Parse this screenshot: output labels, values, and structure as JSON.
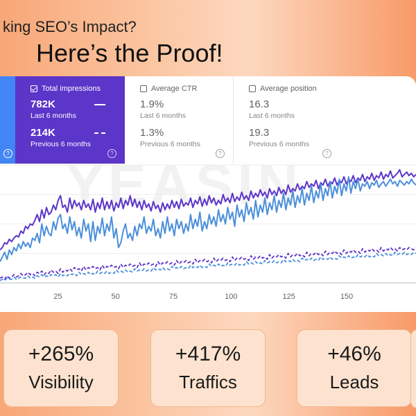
{
  "headline": {
    "tagline": "king SEO’s Impact?",
    "main": "Here’s the Proof!"
  },
  "metrics": [
    {
      "id": "clicks",
      "label": "",
      "checked": true,
      "color": "#4285f4"
    },
    {
      "id": "impressions",
      "label": "Total impressions",
      "checked": true,
      "color": "#5c35c9",
      "current": "782K",
      "current_period": "Last 6 months",
      "previous": "214K",
      "previous_period": "Previous 6 months"
    },
    {
      "id": "ctr",
      "label": "Average CTR",
      "checked": false,
      "current": "1.9%",
      "current_period": "Last 6 months",
      "previous": "1.3%",
      "previous_period": "Previous 6 months"
    },
    {
      "id": "position",
      "label": "Average position",
      "checked": false,
      "current": "16.3",
      "current_period": "Last 6 months",
      "previous": "19.3",
      "previous_period": "Previous 6 months"
    }
  ],
  "watermark": "YEASIN",
  "chart_data": {
    "type": "line",
    "x_ticks": [
      25,
      50,
      75,
      100,
      125,
      150
    ],
    "xlim": [
      0,
      180
    ],
    "ylim": [
      0,
      100
    ],
    "grid": true,
    "series": [
      {
        "color": "#5c35c9",
        "style": "solid",
        "values": [
          28,
          30,
          34,
          33,
          37,
          35,
          38,
          40,
          39,
          44,
          42,
          48,
          46,
          50,
          49,
          53,
          58,
          52,
          62,
          55,
          64,
          58,
          60,
          66,
          62,
          70,
          74,
          64,
          66,
          60,
          72,
          63,
          70,
          65,
          68,
          62,
          70,
          64,
          67,
          62,
          71,
          60,
          68,
          63,
          72,
          62,
          69,
          63,
          70,
          61,
          68,
          64,
          72,
          63,
          70,
          66,
          74,
          65,
          71,
          64,
          69,
          62,
          70,
          64,
          67,
          61,
          69,
          63,
          66,
          60,
          68,
          62,
          67,
          63,
          70,
          64,
          69,
          63,
          71,
          65,
          68,
          66,
          72,
          64,
          70,
          67,
          73,
          65,
          71,
          66,
          74,
          68,
          72,
          66,
          70,
          67,
          75,
          69,
          72,
          68,
          76,
          69,
          73,
          70,
          77,
          71,
          74,
          70,
          78,
          72,
          76,
          73,
          79,
          74,
          77,
          72,
          80,
          75,
          78,
          74,
          81,
          76,
          79,
          75,
          83,
          77,
          80,
          78,
          84,
          79,
          82,
          80,
          86,
          81,
          84,
          82,
          87,
          80,
          85,
          83,
          88,
          82,
          86,
          84,
          89,
          83,
          87,
          85,
          90,
          84,
          88,
          86,
          91,
          85,
          89,
          87,
          92,
          86,
          90,
          88,
          93,
          87,
          91,
          89,
          94,
          88,
          92,
          90,
          95,
          89,
          91,
          93,
          96,
          90,
          92,
          94,
          91,
          93,
          90,
          92
        ]
      },
      {
        "color": "#4b8fdb",
        "style": "solid",
        "values": [
          18,
          22,
          26,
          20,
          28,
          24,
          30,
          27,
          33,
          29,
          35,
          31,
          34,
          30,
          38,
          36,
          42,
          34,
          50,
          40,
          48,
          42,
          40,
          52,
          45,
          55,
          58,
          46,
          50,
          42,
          56,
          45,
          52,
          40,
          47,
          38,
          54,
          44,
          50,
          35,
          52,
          36,
          48,
          42,
          55,
          40,
          50,
          44,
          56,
          38,
          46,
          30,
          34,
          44,
          50,
          38,
          42,
          36,
          48,
          40,
          50,
          46,
          56,
          42,
          48,
          44,
          54,
          40,
          46,
          38,
          52,
          42,
          56,
          44,
          50,
          40,
          54,
          46,
          52,
          42,
          50,
          44,
          58,
          46,
          54,
          48,
          60,
          44,
          52,
          46,
          58,
          50,
          56,
          48,
          62,
          52,
          58,
          50,
          64,
          54,
          60,
          48,
          66,
          56,
          62,
          52,
          68,
          58,
          64,
          54,
          70,
          56,
          66,
          60,
          72,
          58,
          68,
          62,
          74,
          60,
          70,
          64,
          76,
          62,
          72,
          66,
          78,
          64,
          74,
          68,
          80,
          66,
          76,
          70,
          82,
          68,
          78,
          72,
          84,
          70,
          80,
          74,
          86,
          72,
          82,
          76,
          88,
          74,
          84,
          78,
          90,
          76,
          86,
          80,
          88,
          78,
          84,
          82,
          86,
          80,
          85,
          83,
          87,
          81,
          84,
          86,
          82,
          85,
          88,
          84,
          86,
          82,
          87,
          85,
          83,
          86,
          84,
          88,
          85,
          83
        ]
      },
      {
        "color": "#5c35c9",
        "style": "dashed",
        "values": [
          4,
          5,
          3,
          6,
          4,
          5,
          7,
          5,
          6,
          8,
          6,
          7,
          9,
          7,
          8,
          6,
          9,
          8,
          10,
          7,
          9,
          8,
          11,
          9,
          10,
          8,
          12,
          9,
          11,
          10,
          12,
          10,
          13,
          11,
          12,
          10,
          14,
          11,
          13,
          12,
          14,
          12,
          13,
          11,
          15,
          12,
          14,
          13,
          15,
          13,
          14,
          12,
          16,
          13,
          15,
          14,
          16,
          14,
          15,
          13,
          17,
          14,
          16,
          15,
          17,
          15,
          16,
          14,
          18,
          15,
          17,
          16,
          18,
          16,
          17,
          15,
          19,
          16,
          18,
          17,
          19,
          17,
          18,
          16,
          20,
          17,
          19,
          18,
          20,
          18,
          19,
          17,
          21,
          18,
          20,
          19,
          21,
          19,
          20,
          18,
          22,
          19,
          21,
          20,
          22,
          20,
          21,
          19,
          23,
          20,
          22,
          21,
          23,
          21,
          22,
          20,
          24,
          21,
          23,
          22,
          24,
          22,
          23,
          21,
          25,
          22,
          24,
          23,
          25,
          23,
          24,
          22,
          26,
          23,
          25,
          24,
          26,
          24,
          25,
          23,
          27,
          24,
          26,
          25,
          27,
          25,
          26,
          24,
          28,
          25,
          27,
          26,
          28,
          26,
          27,
          25,
          29,
          26,
          28,
          27,
          29,
          27,
          28,
          26,
          30,
          27,
          29,
          28,
          30,
          28,
          29,
          27,
          30,
          28,
          29,
          28,
          30,
          29,
          28,
          30
        ]
      },
      {
        "color": "#4b8fdb",
        "style": "dashed",
        "values": [
          2,
          3,
          2,
          4,
          3,
          3,
          5,
          3,
          4,
          5,
          4,
          4,
          6,
          4,
          5,
          4,
          6,
          5,
          7,
          5,
          6,
          5,
          7,
          6,
          7,
          5,
          8,
          6,
          7,
          6,
          8,
          7,
          8,
          6,
          9,
          7,
          8,
          7,
          9,
          7,
          8,
          7,
          10,
          8,
          9,
          8,
          10,
          8,
          9,
          8,
          11,
          9,
          10,
          9,
          11,
          9,
          10,
          9,
          12,
          10,
          11,
          10,
          12,
          10,
          11,
          10,
          13,
          11,
          12,
          11,
          13,
          11,
          12,
          11,
          14,
          12,
          13,
          12,
          14,
          12,
          13,
          12,
          15,
          13,
          14,
          13,
          15,
          13,
          14,
          13,
          16,
          14,
          15,
          14,
          16,
          14,
          15,
          14,
          17,
          15,
          16,
          15,
          17,
          15,
          16,
          15,
          18,
          16,
          17,
          16,
          18,
          16,
          17,
          16,
          19,
          17,
          18,
          17,
          19,
          17,
          18,
          17,
          20,
          18,
          19,
          18,
          20,
          18,
          19,
          18,
          21,
          19,
          20,
          19,
          21,
          19,
          20,
          19,
          22,
          20,
          21,
          20,
          22,
          20,
          21,
          20,
          23,
          21,
          22,
          21,
          23,
          21,
          22,
          21,
          24,
          22,
          23,
          22,
          24,
          22,
          23,
          22,
          25,
          23,
          24,
          23,
          25,
          23,
          24,
          23,
          26,
          24,
          25,
          24,
          26,
          24,
          25,
          24,
          26,
          25
        ]
      }
    ]
  },
  "stats": [
    {
      "value": "+265%",
      "label": "Visibility"
    },
    {
      "value": "+417%",
      "label": "Traffics"
    },
    {
      "value": "+46%",
      "label": "Leads"
    }
  ]
}
